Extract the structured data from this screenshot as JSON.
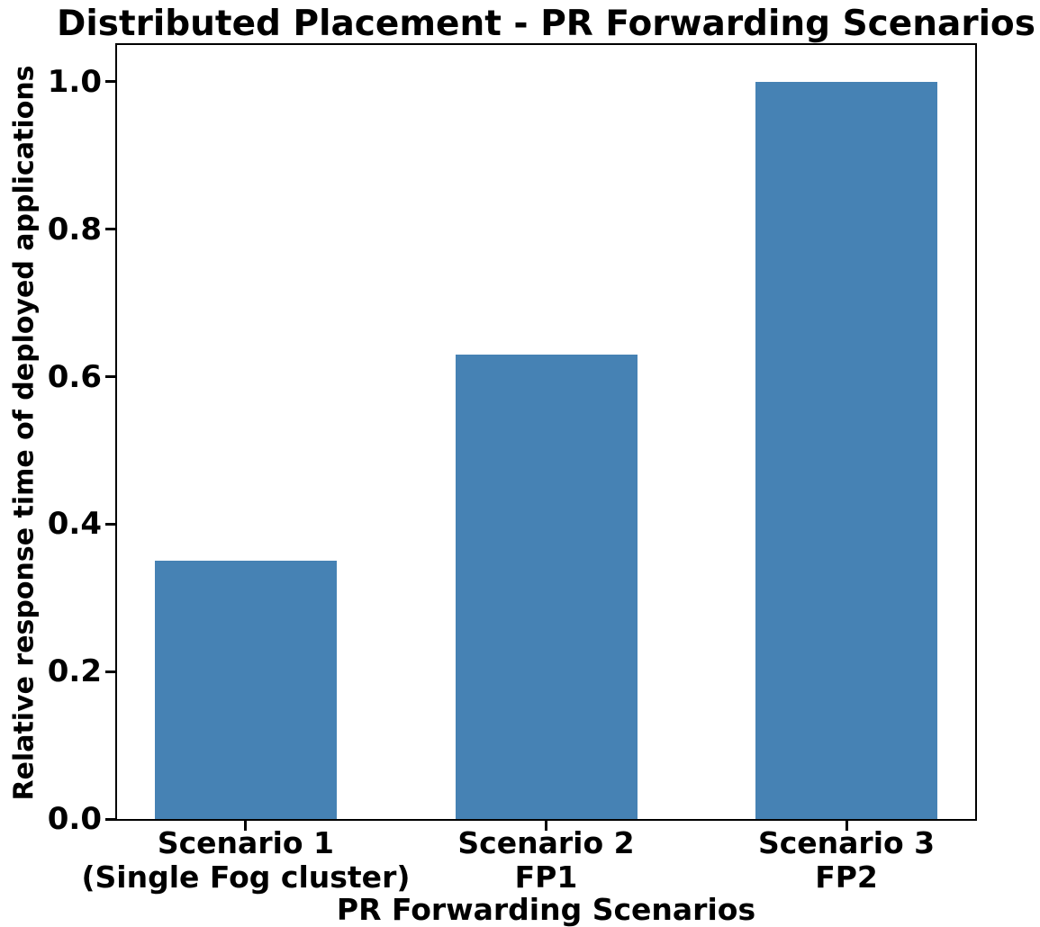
{
  "chart_data": {
    "type": "bar",
    "title": "Distributed Placement - PR Forwarding Scenarios",
    "xlabel": "PR Forwarding Scenarios",
    "ylabel": "Relative response time of deployed applications",
    "categories": [
      "Scenario 1\n(Single Fog cluster)",
      "Scenario 2\nFP1",
      "Scenario 3\nFP2"
    ],
    "values": [
      0.35,
      0.63,
      1.0
    ],
    "yticks": [
      0.0,
      0.2,
      0.4,
      0.6,
      0.8,
      1.0
    ],
    "ylim": [
      0,
      1.05
    ],
    "bar_color": "#4682B4",
    "grid": false,
    "legend_position": "none"
  }
}
